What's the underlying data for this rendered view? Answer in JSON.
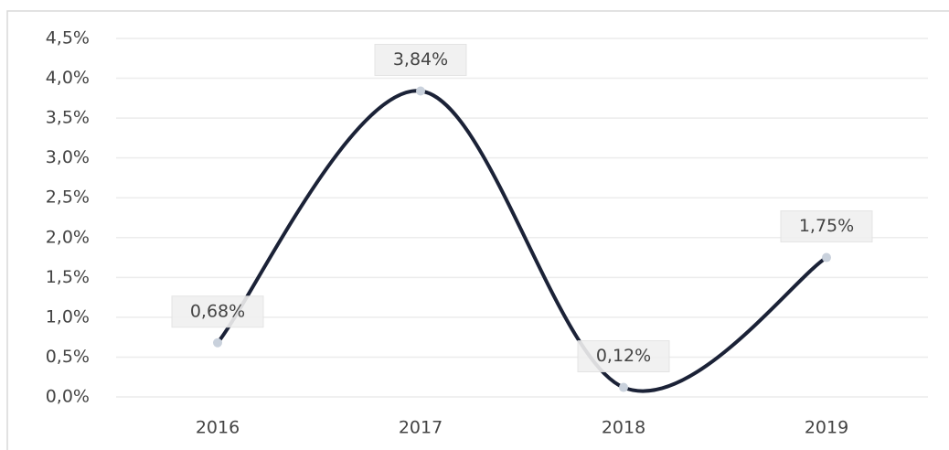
{
  "chart_data": {
    "type": "line",
    "categories": [
      "2016",
      "2017",
      "2018",
      "2019"
    ],
    "values": [
      0.68,
      3.84,
      0.12,
      1.75
    ],
    "value_labels": [
      "0,68%",
      "3,84%",
      "0,12%",
      "1,75%"
    ],
    "color": "#1b2237",
    "ylim": [
      0,
      4.5
    ],
    "yticks": [
      {
        "value": 0,
        "label": "0,0%"
      },
      {
        "value": 0.5,
        "label": "0,5%"
      },
      {
        "value": 1,
        "label": "1,0%"
      },
      {
        "value": 1.5,
        "label": "1,5%"
      },
      {
        "value": 2,
        "label": "2,0%"
      },
      {
        "value": 2.5,
        "label": "2,5%"
      },
      {
        "value": 3,
        "label": "3,0%"
      },
      {
        "value": 3.5,
        "label": "3,5%"
      },
      {
        "value": 4,
        "label": "4,0%"
      },
      {
        "value": 4.5,
        "label": "4,5%"
      }
    ],
    "grid": true
  }
}
